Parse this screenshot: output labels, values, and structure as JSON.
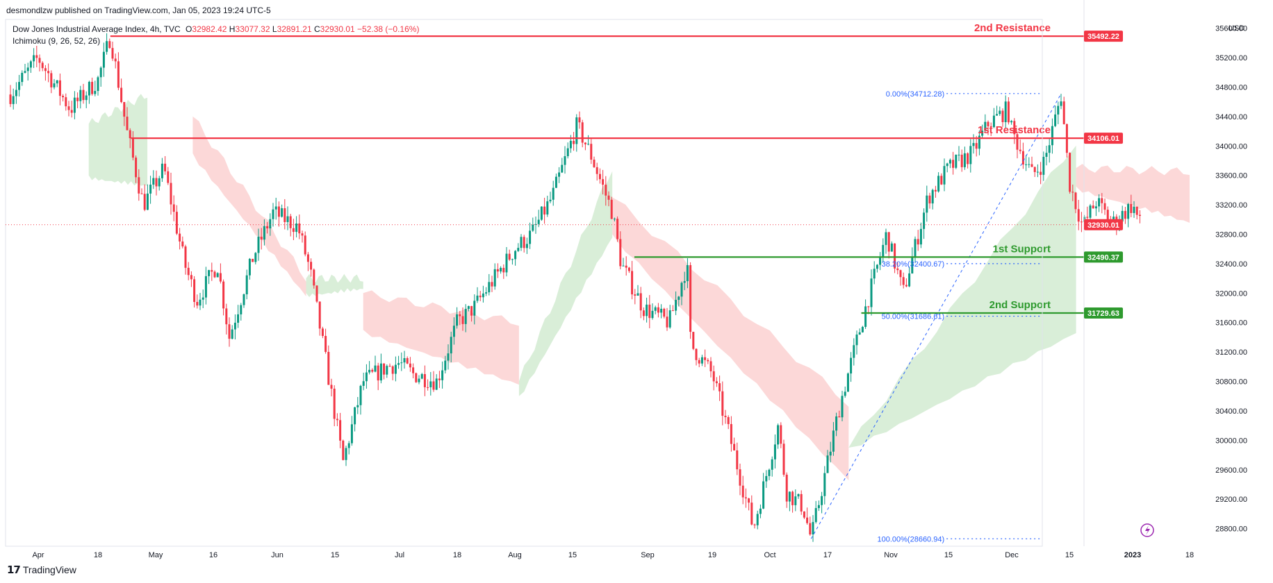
{
  "publish_line": "desmondlzw published on TradingView.com, Jan 05, 2023 19:24 UTC-5",
  "legend": {
    "title": "Dow Jones Industrial Average Index, 4h, TVC",
    "o_label": "O",
    "o_value": "32982.42",
    "h_label": "H",
    "h_value": "33077.32",
    "l_label": "L",
    "l_value": "32891.21",
    "c_label": "C",
    "c_value": "32930.01",
    "change": "−52.38 (−0.16%)",
    "indicator": "Ichimoku (9, 26, 52, 26)"
  },
  "currency": "USD",
  "footer_brand": "TradingView",
  "colors": {
    "up": "#089981",
    "down": "#f23645",
    "resistance": "#f23645",
    "support": "#2e9a2e",
    "fib": "#2962ff",
    "cloud_bull": "#d5ecd4",
    "cloud_bear": "#fcd4d4",
    "price_line": "#f23645"
  },
  "chart_data": {
    "type": "candlestick",
    "title": "Dow Jones Industrial Average Index, 4h, TVC",
    "ylabel": "USD",
    "ylim": [
      28560,
      35720
    ],
    "y_ticks": [
      "35600.00",
      "35200.00",
      "34800.00",
      "34400.00",
      "34000.00",
      "33600.00",
      "33200.00",
      "32800.00",
      "32400.00",
      "32000.00",
      "31600.00",
      "31200.00",
      "30800.00",
      "30400.00",
      "30000.00",
      "29600.00",
      "29200.00",
      "28800.00"
    ],
    "x_ticks": [
      "Apr",
      "18",
      "May",
      "16",
      "Jun",
      "15",
      "Jul",
      "18",
      "Aug",
      "15",
      "Sep",
      "19",
      "Oct",
      "17",
      "Nov",
      "15",
      "Dec",
      "15",
      "2023",
      "18"
    ],
    "price_path": [
      [
        "Mar 31",
        34700
      ],
      [
        "Apr 05",
        35200
      ],
      [
        "Apr 12",
        34500
      ],
      [
        "Apr 18",
        34900
      ],
      [
        "Apr 21",
        35492
      ],
      [
        "Apr 25",
        34200
      ],
      [
        "Apr 29",
        33200
      ],
      [
        "May 04",
        33700
      ],
      [
        "May 09",
        32400
      ],
      [
        "May 12",
        31900
      ],
      [
        "May 17",
        32400
      ],
      [
        "May 20",
        31400
      ],
      [
        "May 26",
        32500
      ],
      [
        "May 31",
        33100
      ],
      [
        "Jun 06",
        32900
      ],
      [
        "Jun 09",
        32300
      ],
      [
        "Jun 13",
        31000
      ],
      [
        "Jun 17",
        29700
      ],
      [
        "Jun 22",
        30800
      ],
      [
        "Jun 28",
        31000
      ],
      [
        "Jul 01",
        31050
      ],
      [
        "Jul 05",
        30900
      ],
      [
        "Jul 12",
        30800
      ],
      [
        "Jul 18",
        31600
      ],
      [
        "Jul 22",
        31800
      ],
      [
        "Jul 27",
        32200
      ],
      [
        "Aug 01",
        32600
      ],
      [
        "Aug 05",
        32800
      ],
      [
        "Aug 10",
        33300
      ],
      [
        "Aug 16",
        34280
      ],
      [
        "Aug 19",
        33900
      ],
      [
        "Aug 24",
        33100
      ],
      [
        "Aug 26",
        32400
      ],
      [
        "Aug 31",
        31800
      ],
      [
        "Sep 07",
        31600
      ],
      [
        "Sep 12",
        32400
      ],
      [
        "Sep 13",
        31300
      ],
      [
        "Sep 19",
        30900
      ],
      [
        "Sep 23",
        30100
      ],
      [
        "Sep 29",
        28800
      ],
      [
        "Oct 05",
        30200
      ],
      [
        "Oct 07",
        29300
      ],
      [
        "Oct 11",
        29100
      ],
      [
        "Oct 13",
        28661
      ],
      [
        "Oct 20",
        30500
      ],
      [
        "Oct 26",
        31800
      ],
      [
        "Oct 31",
        32800
      ],
      [
        "Nov 04",
        32000
      ],
      [
        "Nov 10",
        33300
      ],
      [
        "Nov 15",
        33700
      ],
      [
        "Nov 21",
        33900
      ],
      [
        "Nov 25",
        34300
      ],
      [
        "Nov 30",
        34500
      ],
      [
        "Dec 01",
        34200
      ],
      [
        "Dec 06",
        33600
      ],
      [
        "Dec 09",
        33800
      ],
      [
        "Dec 13",
        34700
      ],
      [
        "Dec 15",
        33500
      ],
      [
        "Dec 19",
        32900
      ],
      [
        "Dec 23",
        33250
      ],
      [
        "Dec 28",
        32950
      ],
      [
        "Jan 03",
        33200
      ],
      [
        "Jan 05",
        32930
      ]
    ],
    "levels": [
      {
        "label": "2nd Resistance",
        "value": "35492.22",
        "kind": "resistance"
      },
      {
        "label": "1st Resistance",
        "value": "34106.01",
        "kind": "resistance"
      },
      {
        "label": "1st Support",
        "value": "32490.37",
        "kind": "support"
      },
      {
        "label": "2nd Support",
        "value": "31729.63",
        "kind": "support"
      }
    ],
    "last_price": "32930.01",
    "fibonacci": [
      {
        "label": "0.00%(34712.28)",
        "value": 34712.28
      },
      {
        "label": "38.20%(32400.67)",
        "value": 32400.67
      },
      {
        "label": "50.00%(31686.61)",
        "value": 31686.61
      },
      {
        "label": "100.00%(28660.94)",
        "value": 28660.94
      }
    ],
    "ichimoku_cloud": [
      {
        "from": "Apr 16",
        "to": "Apr 30",
        "upper": [
          34300,
          34700
        ],
        "lower": [
          33600,
          33500
        ],
        "trend": "bull"
      },
      {
        "from": "May 11",
        "to": "Jun 08",
        "upper": [
          34400,
          32200
        ],
        "lower": [
          33900,
          32000
        ],
        "trend": "bear"
      },
      {
        "from": "Jun 08",
        "to": "Jun 22",
        "upper": [
          32200,
          32200
        ],
        "lower": [
          32000,
          32100
        ],
        "trend": "bull"
      },
      {
        "from": "Jun 22",
        "to": "Aug 02",
        "upper": [
          32000,
          31600
        ],
        "lower": [
          31500,
          30800
        ],
        "trend": "bear"
      },
      {
        "from": "Aug 02",
        "to": "Aug 24",
        "upper": [
          30800,
          33700
        ],
        "lower": [
          30600,
          32800
        ],
        "trend": "bull"
      },
      {
        "from": "Aug 24",
        "to": "Oct 22",
        "upper": [
          33300,
          30500
        ],
        "lower": [
          32800,
          29500
        ],
        "trend": "bear"
      },
      {
        "from": "Oct 22",
        "to": "Dec 17",
        "upper": [
          29900,
          34050
        ],
        "lower": [
          29900,
          31500
        ],
        "trend": "bull"
      },
      {
        "from": "Dec 17",
        "to": "Jan 18",
        "upper": [
          33700,
          33650
        ],
        "lower": [
          33450,
          33000
        ],
        "trend": "bear"
      }
    ]
  }
}
